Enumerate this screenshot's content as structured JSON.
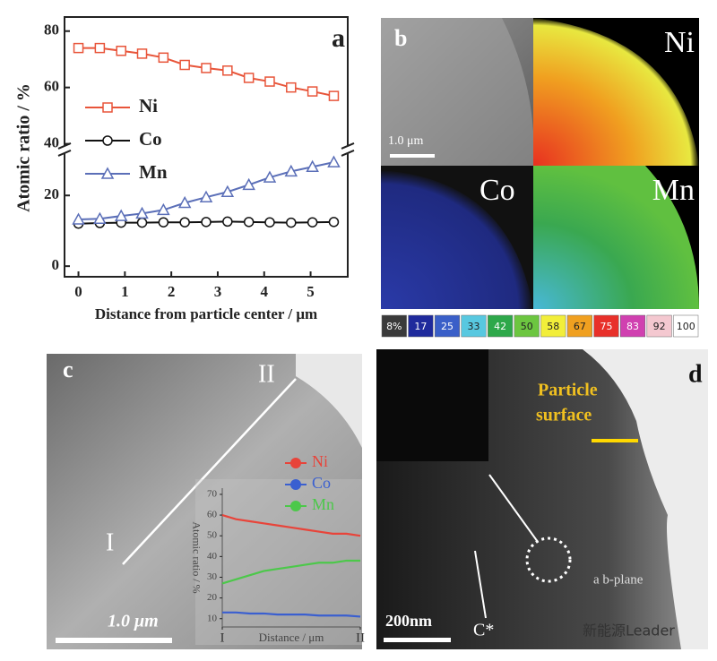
{
  "chart_data": [
    {
      "type": "line",
      "panel_label": "a",
      "ylabel": "Atomic ratio / %",
      "xlabel": "Distance from particle center / μm",
      "x": [
        0,
        0.46,
        0.92,
        1.37,
        1.83,
        2.29,
        2.75,
        3.21,
        3.67,
        4.12,
        4.58,
        5.04,
        5.5
      ],
      "series": [
        {
          "name": "Ni",
          "color": "#e8553a",
          "marker": "square",
          "values": [
            74,
            74,
            73,
            72,
            70.6,
            68,
            66.9,
            66,
            63.4,
            62.1,
            60,
            58.6,
            57
          ]
        },
        {
          "name": "Co",
          "color": "#111111",
          "marker": "circle",
          "values": [
            12,
            12.2,
            12.3,
            12.3,
            12.4,
            12.4,
            12.5,
            12.6,
            12.5,
            12.4,
            12.3,
            12.4,
            12.5
          ]
        },
        {
          "name": "Mn",
          "color": "#5b6fb8",
          "marker": "triangle",
          "values": [
            13.2,
            13.4,
            14.2,
            14.9,
            15.9,
            17.9,
            19.5,
            21,
            23,
            25.1,
            26.8,
            28.1,
            29.4
          ]
        }
      ],
      "xlim": [
        -0.3,
        5.8
      ],
      "xticks": [
        0,
        1,
        2,
        3,
        4,
        5
      ],
      "ylim": [
        -3,
        85
      ],
      "ybreak": [
        33,
        38
      ],
      "yticks": [
        0,
        20,
        40,
        60,
        80
      ]
    },
    {
      "type": "line",
      "ylabel": "Atomic ratio / %",
      "xlabel": "Distance / μm",
      "x": [
        0,
        0.1,
        0.2,
        0.3,
        0.4,
        0.5,
        0.6,
        0.7,
        0.8,
        0.9,
        1
      ],
      "series": [
        {
          "name": "Ni",
          "color": "#e8443a",
          "values": [
            60,
            58,
            57,
            56,
            55,
            54,
            53,
            52,
            51,
            51,
            50
          ]
        },
        {
          "name": "Co",
          "color": "#3a5fd0",
          "values": [
            13,
            13,
            12.5,
            12.5,
            12,
            12,
            12,
            11.5,
            11.5,
            11.5,
            11
          ]
        },
        {
          "name": "Mn",
          "color": "#4cc84a",
          "values": [
            27,
            29,
            31,
            33,
            34,
            35,
            36,
            37,
            37,
            38,
            38
          ]
        }
      ],
      "xlim": [
        0,
        1
      ],
      "xticks": [
        {
          "value": 0,
          "label": "I"
        },
        {
          "value": 1,
          "label": "II"
        }
      ],
      "ylim": [
        6,
        73
      ],
      "yticks": [
        10,
        20,
        30,
        40,
        50,
        60,
        70
      ]
    }
  ],
  "panel_b": {
    "label": "b",
    "maps": [
      "Ni",
      "Co",
      "Mn"
    ],
    "scale_bar": "1.0 μm",
    "colorbar": [
      {
        "value": 8,
        "label": "8%",
        "color": "#3a3a3a"
      },
      {
        "value": 17,
        "color": "#1f2a9c"
      },
      {
        "value": 25,
        "color": "#3a5fc8"
      },
      {
        "value": 33,
        "color": "#58c8e0"
      },
      {
        "value": 42,
        "color": "#2ea84a"
      },
      {
        "value": 50,
        "color": "#6cc640"
      },
      {
        "value": 58,
        "color": "#f2ee3a"
      },
      {
        "value": 67,
        "color": "#f0a020"
      },
      {
        "value": 75,
        "color": "#e8302a"
      },
      {
        "value": 83,
        "color": "#d040b0"
      },
      {
        "value": 92,
        "color": "#f4c8d0"
      },
      {
        "value": 100,
        "color": "#ffffff"
      }
    ]
  },
  "panel_c": {
    "label": "c",
    "line_start": "I",
    "line_end": "II",
    "scale_bar": "1.0 μm"
  },
  "panel_d": {
    "label": "d",
    "annotation": [
      "Particle",
      "surface"
    ],
    "plane": "a b-plane",
    "direction": "C*",
    "scale_bar": "200nm"
  },
  "watermark": "新能源Leader"
}
